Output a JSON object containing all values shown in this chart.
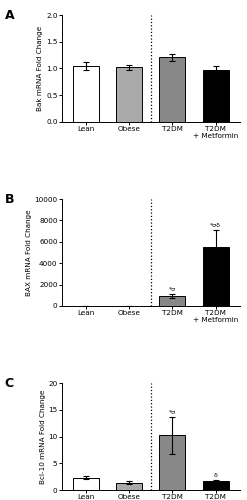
{
  "panel_A": {
    "label": "A",
    "ylabel": "Bak mRNA Fold Change",
    "categories": [
      "Lean",
      "Obese",
      "T2DM",
      "T2DM\n+ Metformin"
    ],
    "values": [
      1.05,
      1.02,
      1.21,
      0.97
    ],
    "errors": [
      0.07,
      0.05,
      0.07,
      0.07
    ],
    "colors": [
      "#ffffff",
      "#aaaaaa",
      "#888888",
      "#000000"
    ],
    "ylim": [
      0.0,
      2.0
    ],
    "yticks": [
      0.0,
      0.5,
      1.0,
      1.5,
      2.0
    ],
    "annotations": [
      "",
      "",
      "",
      ""
    ],
    "dotted_line_x": 1.5
  },
  "panel_B": {
    "label": "B",
    "ylabel": "BAX mRNA Fold Change",
    "categories": [
      "Lean",
      "Obese",
      "T2DM",
      "T2DM\n+ Metformin"
    ],
    "values": [
      5,
      5,
      950,
      5500
    ],
    "errors": [
      5,
      5,
      200,
      1600
    ],
    "colors": [
      "#ffffff",
      "#aaaaaa",
      "#888888",
      "#000000"
    ],
    "ylim": [
      0,
      10000
    ],
    "yticks": [
      0,
      2000,
      4000,
      6000,
      8000,
      10000
    ],
    "annotations": [
      "",
      "",
      "*σ",
      "*σδ"
    ],
    "dotted_line_x": 1.5
  },
  "panel_C": {
    "label": "C",
    "ylabel": "Bcl-10 mRNA Fold Change",
    "categories": [
      "Lean",
      "Obese",
      "T2DM",
      "T2DM\n+ Metformin"
    ],
    "values": [
      2.3,
      1.4,
      10.2,
      1.6
    ],
    "errors": [
      0.3,
      0.3,
      3.5,
      0.3
    ],
    "colors": [
      "#ffffff",
      "#aaaaaa",
      "#888888",
      "#000000"
    ],
    "ylim": [
      0,
      20
    ],
    "yticks": [
      0,
      5,
      10,
      15,
      20
    ],
    "annotations": [
      "",
      "",
      "*σ",
      "δ"
    ],
    "dotted_line_x": 1.5
  },
  "edge_color": "#000000",
  "bar_width": 0.6,
  "figure_bg": "#ffffff"
}
